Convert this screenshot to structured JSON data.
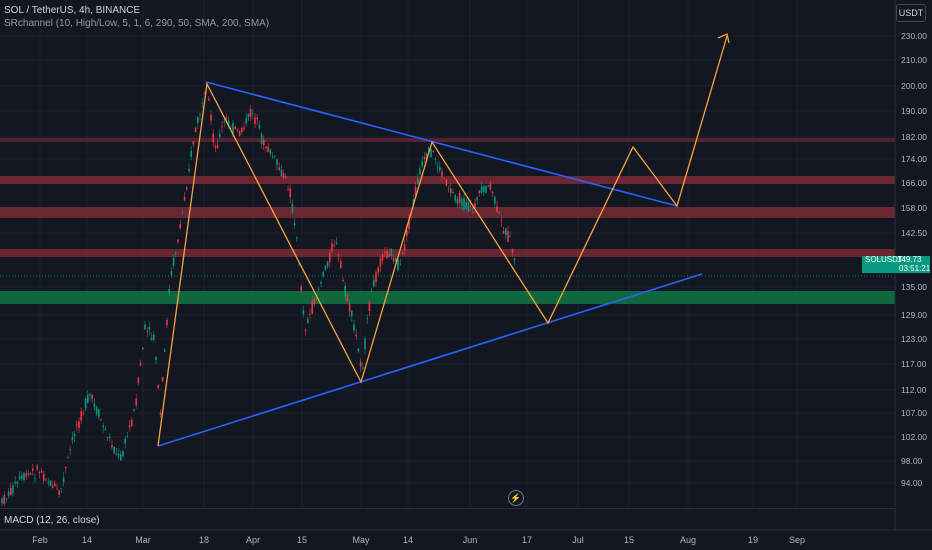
{
  "header": {
    "symbol_line": "SOL / TetherUS, 4h, BINANCE",
    "indicator_line": "SRchannel (10, High/Low, 5, 1, 6, 290, 50, SMA, 200, SMA)",
    "currency": "USDT"
  },
  "macd_label": "MACD (12, 26, close)",
  "price_axis": {
    "ticks": [
      "230.00",
      "210.00",
      "200.00",
      "190.00",
      "182.00",
      "174.00",
      "166.00",
      "158.00",
      "142.50",
      "135.00",
      "129.00",
      "123.00",
      "117.00",
      "112.00",
      "107.00",
      "102.00",
      "98.00",
      "94.00"
    ]
  },
  "current_price": {
    "symbol": "SOLUSDT",
    "price": "149.73",
    "countdown": "03:51:21"
  },
  "time_axis": {
    "labels": [
      "Feb",
      "14",
      "Mar",
      "18",
      "Apr",
      "15",
      "May",
      "14",
      "Jun",
      "17",
      "Jul",
      "15",
      "Aug",
      "19",
      "Sep"
    ]
  },
  "colors": {
    "background": "#131722",
    "grid": "#1e222d",
    "candle_up": "#089981",
    "candle_down": "#f23645",
    "trendline": "#2962ff",
    "pattern": "#f7a440",
    "resistance_zone": "#8b2a33",
    "support_zone": "#0e6b3f"
  },
  "flash_icon": "lightning-icon"
}
